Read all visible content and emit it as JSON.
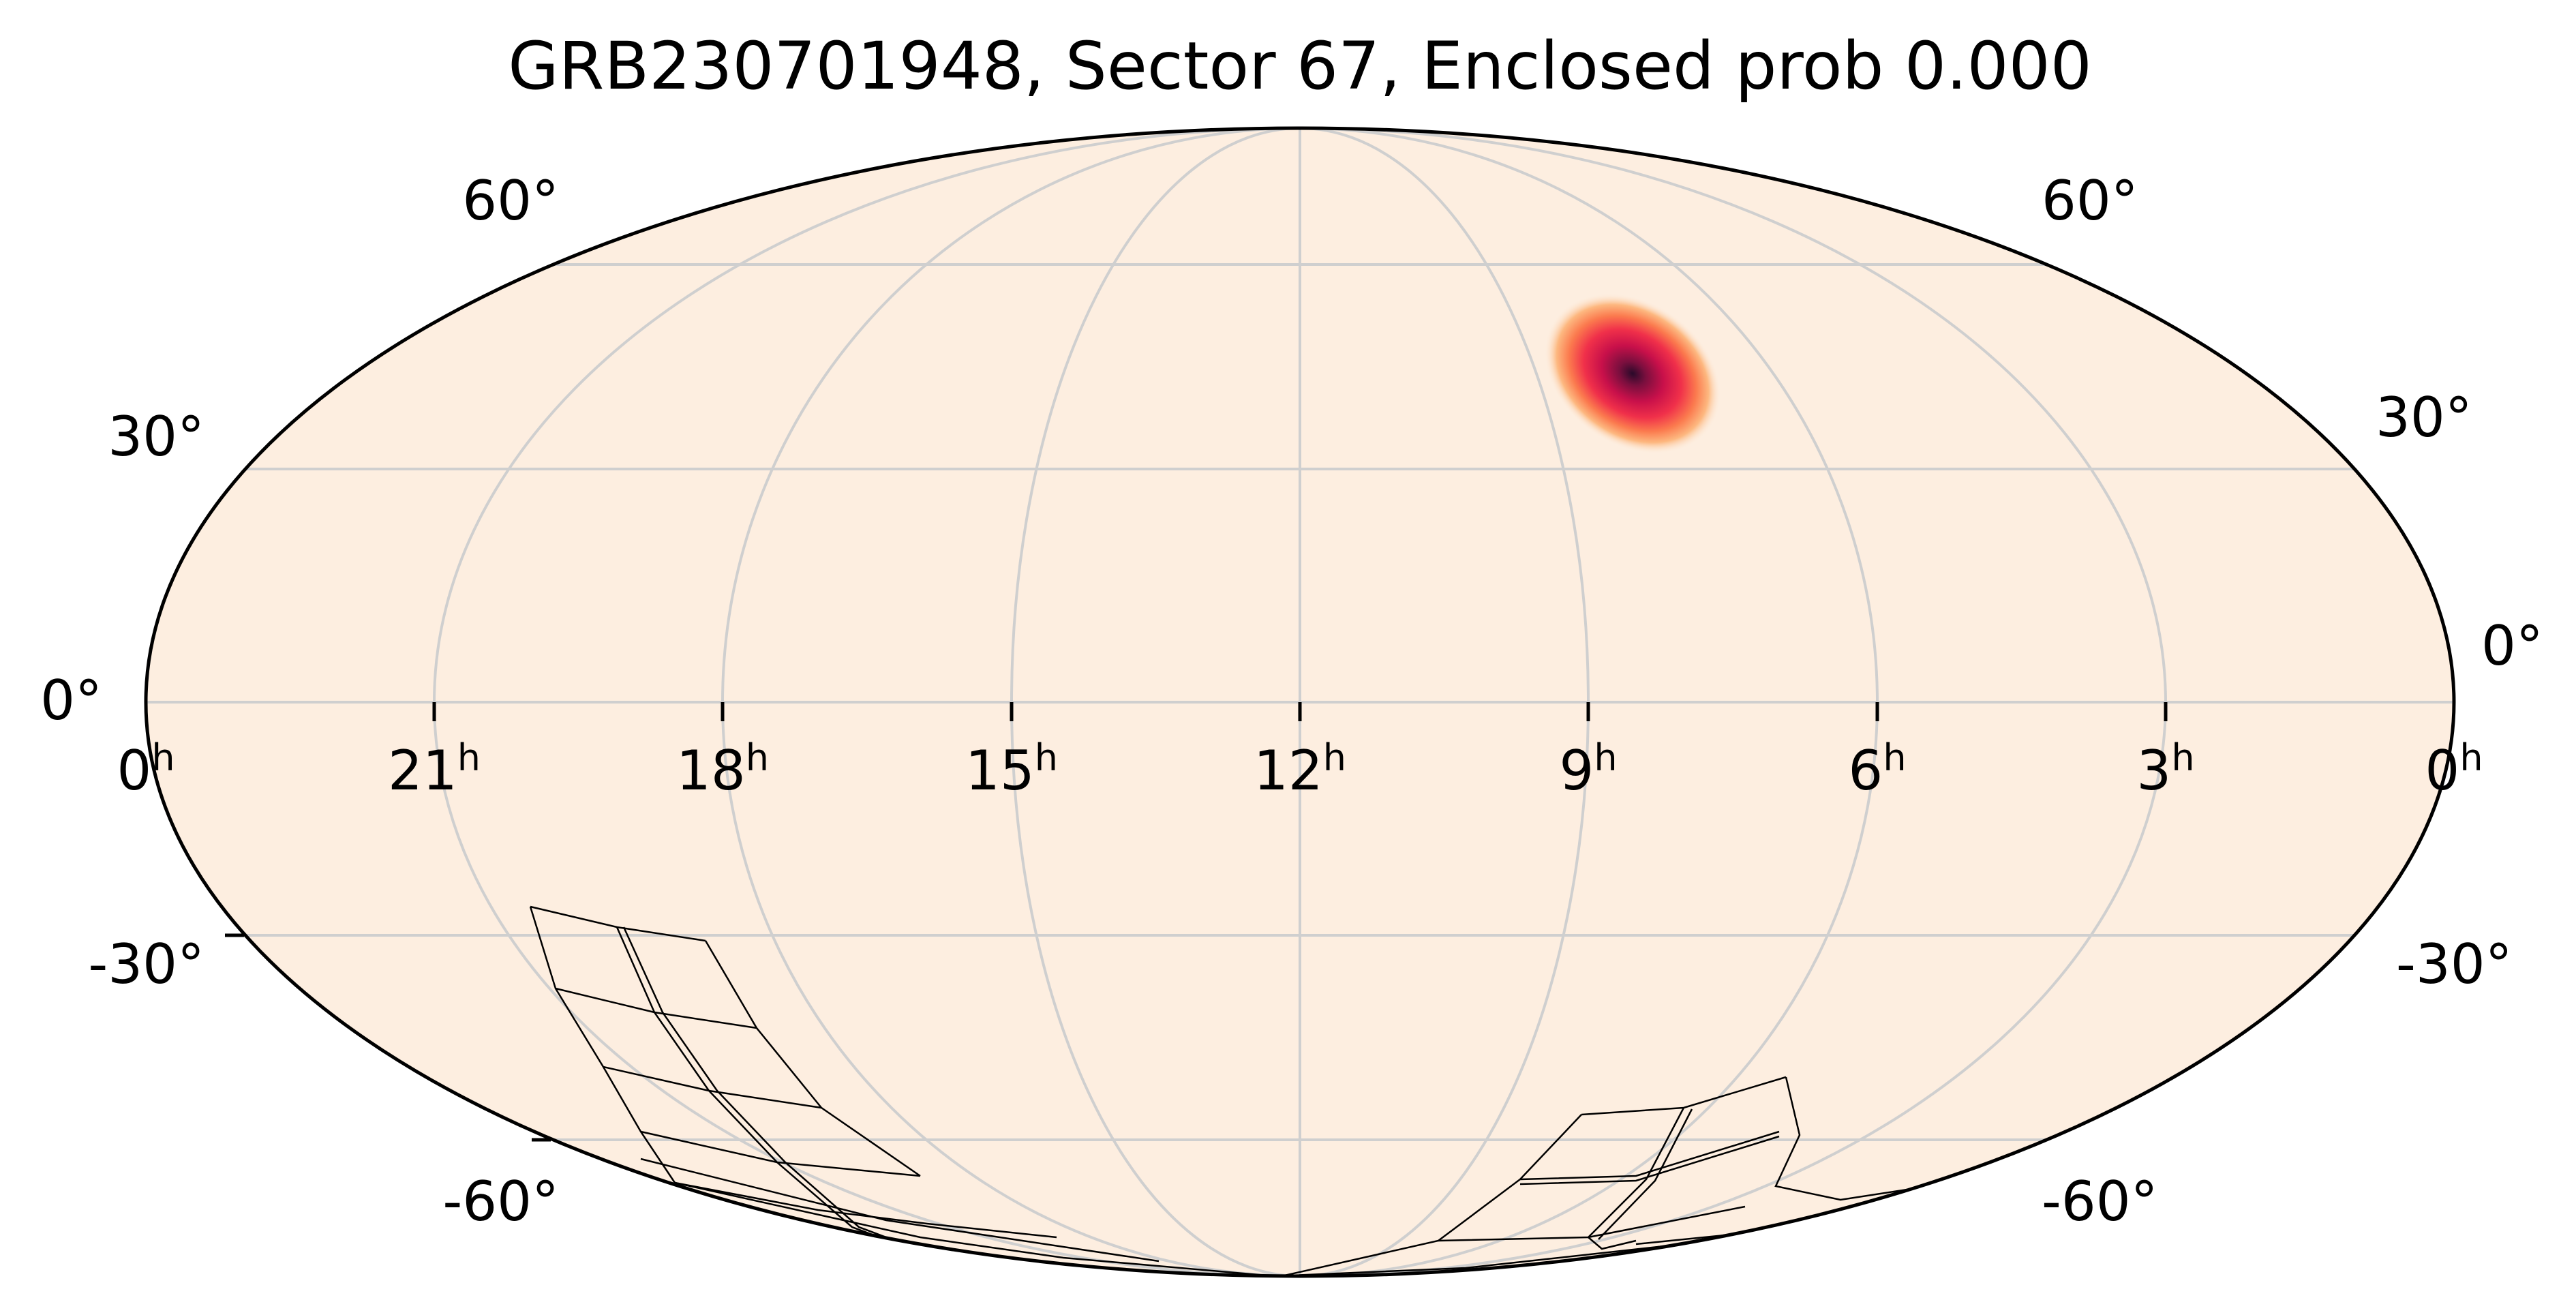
{
  "title": "GRB230701948, Sector 67, Enclosed prob 0.000",
  "projection": "mollweide",
  "background_color": "#fdeee0",
  "grid_color": "#cfcfcf",
  "ra_labels": [
    {
      "h": 24,
      "text": "0",
      "sup": "h"
    },
    {
      "h": 21,
      "text": "21",
      "sup": "h"
    },
    {
      "h": 18,
      "text": "18",
      "sup": "h"
    },
    {
      "h": 15,
      "text": "15",
      "sup": "h"
    },
    {
      "h": 12,
      "text": "12",
      "sup": "h"
    },
    {
      "h": 9,
      "text": "9",
      "sup": "h"
    },
    {
      "h": 6,
      "text": "6",
      "sup": "h"
    },
    {
      "h": 3,
      "text": "3",
      "sup": "h"
    },
    {
      "h": 0,
      "text": "0",
      "sup": "h"
    }
  ],
  "dec_labels": [
    {
      "dec": 60,
      "text": "60°"
    },
    {
      "dec": 30,
      "text": "30°"
    },
    {
      "dec": 0,
      "text": "0°"
    },
    {
      "dec": -30,
      "text": "-30°"
    },
    {
      "dec": -60,
      "text": "-60°"
    }
  ],
  "probability_peak": {
    "ra_h": 7.9,
    "dec": 43,
    "colormap": "magma"
  }
}
